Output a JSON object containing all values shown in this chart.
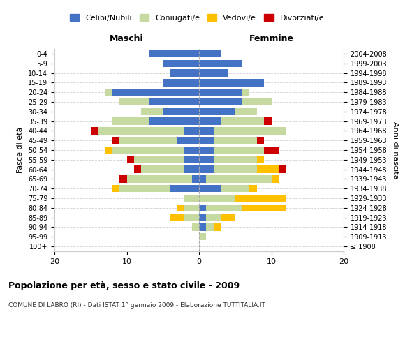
{
  "age_groups": [
    "100+",
    "95-99",
    "90-94",
    "85-89",
    "80-84",
    "75-79",
    "70-74",
    "65-69",
    "60-64",
    "55-59",
    "50-54",
    "45-49",
    "40-44",
    "35-39",
    "30-34",
    "25-29",
    "20-24",
    "15-19",
    "10-14",
    "5-9",
    "0-4"
  ],
  "birth_years": [
    "≤ 1908",
    "1909-1913",
    "1914-1918",
    "1919-1923",
    "1924-1928",
    "1929-1933",
    "1934-1938",
    "1939-1943",
    "1944-1948",
    "1949-1953",
    "1954-1958",
    "1959-1963",
    "1964-1968",
    "1969-1973",
    "1974-1978",
    "1979-1983",
    "1984-1988",
    "1989-1993",
    "1994-1998",
    "1999-2003",
    "2004-2008"
  ],
  "male_celibi": [
    0,
    0,
    0,
    0,
    0,
    0,
    4,
    1,
    2,
    2,
    2,
    3,
    2,
    7,
    5,
    7,
    12,
    5,
    4,
    5,
    7
  ],
  "male_coniugati": [
    0,
    0,
    1,
    2,
    2,
    2,
    7,
    9,
    6,
    7,
    10,
    8,
    12,
    5,
    3,
    4,
    1,
    0,
    0,
    0,
    0
  ],
  "male_vedovi": [
    0,
    0,
    0,
    2,
    1,
    0,
    1,
    0,
    0,
    0,
    1,
    0,
    0,
    0,
    0,
    0,
    0,
    0,
    0,
    0,
    0
  ],
  "male_divorziati": [
    0,
    0,
    0,
    0,
    0,
    0,
    0,
    1,
    1,
    1,
    0,
    1,
    1,
    0,
    0,
    0,
    0,
    0,
    0,
    0,
    0
  ],
  "female_celibi": [
    0,
    0,
    1,
    1,
    1,
    0,
    3,
    1,
    2,
    2,
    2,
    2,
    2,
    3,
    5,
    6,
    6,
    9,
    4,
    6,
    3
  ],
  "female_coniugati": [
    0,
    1,
    1,
    2,
    5,
    5,
    4,
    9,
    6,
    6,
    7,
    6,
    10,
    6,
    3,
    4,
    1,
    0,
    0,
    0,
    0
  ],
  "female_vedovi": [
    0,
    0,
    1,
    2,
    6,
    7,
    1,
    1,
    3,
    1,
    0,
    0,
    0,
    0,
    0,
    0,
    0,
    0,
    0,
    0,
    0
  ],
  "female_divorziati": [
    0,
    0,
    0,
    0,
    0,
    0,
    0,
    0,
    1,
    0,
    2,
    1,
    0,
    1,
    0,
    0,
    0,
    0,
    0,
    0,
    0
  ],
  "colors": {
    "celibi": "#4472c4",
    "coniugati": "#c5d9a0",
    "vedovi": "#ffc000",
    "divorziati": "#cc0000"
  },
  "title": "Popolazione per età, sesso e stato civile - 2009",
  "subtitle": "COMUNE DI LABRO (RI) - Dati ISTAT 1° gennaio 2009 - Elaborazione TUTTITALIA.IT",
  "xlabel_left": "Maschi",
  "xlabel_right": "Femmine",
  "ylabel_left": "Fasce di età",
  "ylabel_right": "Anni di nascita",
  "xlim": 20,
  "background_color": "#ffffff",
  "grid_color": "#cccccc"
}
